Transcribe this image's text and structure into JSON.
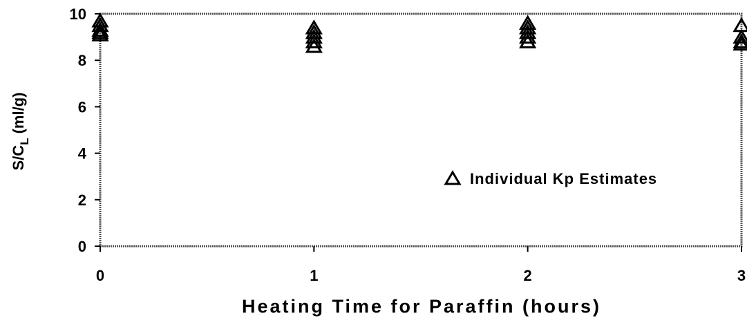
{
  "chart_data": {
    "type": "scatter",
    "x_label": "Heating Time for Paraffin (hours)",
    "y_label": {
      "main": "S/C",
      "sub": "L",
      "unit": "(ml/g)"
    },
    "xlim": [
      0,
      3
    ],
    "xticks": [
      0,
      1,
      2,
      3
    ],
    "ylim": [
      0,
      10
    ],
    "yticks": [
      0,
      2,
      4,
      6,
      8,
      10
    ],
    "legend": "right",
    "series": [
      {
        "name": "Individual Kp Estimates",
        "color": "#000000",
        "marker": "triangle",
        "x": [
          0,
          0,
          0,
          0,
          0,
          1,
          1,
          1,
          1,
          1,
          2,
          2,
          2,
          2,
          2,
          3,
          3,
          3,
          3
        ],
        "values": [
          9.7,
          9.5,
          9.3,
          9.2,
          9.1,
          9.4,
          9.2,
          9.0,
          8.8,
          8.6,
          9.6,
          9.4,
          9.2,
          9.0,
          8.8,
          9.5,
          9.0,
          8.8,
          8.7
        ]
      }
    ]
  }
}
